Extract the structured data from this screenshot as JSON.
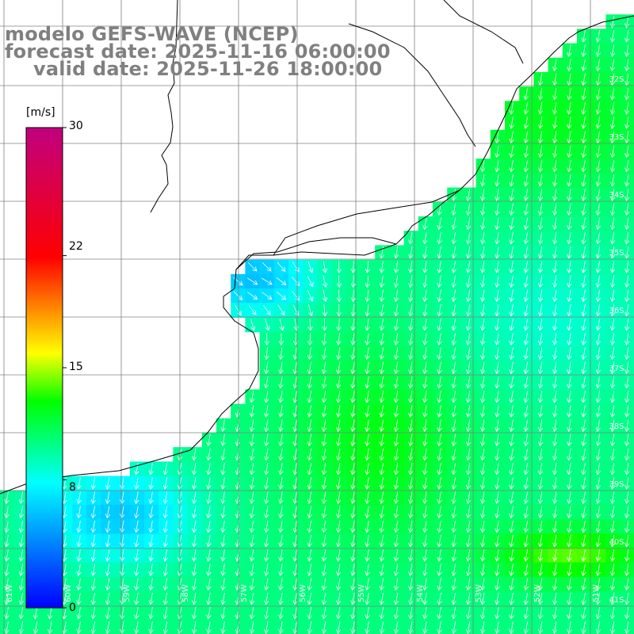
{
  "title": {
    "model": "modelo GEFS-WAVE (NCEP)",
    "forecast": "forecast date: 2025-11-16 06:00:00",
    "valid": "valid date: 2025-11-26 18:00:00"
  },
  "colorbar": {
    "units": "[m/s]",
    "min": 0,
    "max": 30,
    "ticks": [
      {
        "value": 30,
        "label": "30"
      },
      {
        "value": 22,
        "label": "22"
      },
      {
        "value": 15,
        "label": "15"
      },
      {
        "value": 8,
        "label": "8"
      },
      {
        "value": 0,
        "label": "0"
      }
    ],
    "stops": [
      "#0000ff",
      "#00ffff",
      "#00ff00",
      "#ffff00",
      "#ff0000",
      "#c00080"
    ]
  },
  "grid_labels": {
    "lat": [
      "32S",
      "33S",
      "34S",
      "35S",
      "36S",
      "37S",
      "38S",
      "39S",
      "40S",
      "41S"
    ],
    "lon": [
      "61W",
      "60W",
      "59W",
      "58W",
      "57W",
      "56W",
      "55W",
      "54W",
      "53W",
      "52W",
      "51W"
    ]
  },
  "colors": {
    "land": "#ffffff",
    "coast": "#000000",
    "grid": "#808080",
    "arrows": "#ffffff",
    "title": "#808080"
  }
}
